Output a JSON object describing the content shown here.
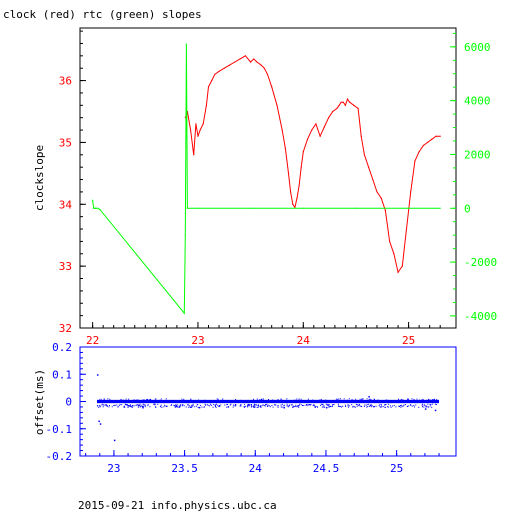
{
  "title": "clock (red) rtc (green) slopes",
  "footer": "2015-09-21 info.physics.ubc.ca",
  "colors": {
    "red": "#ff0000",
    "green": "#00ff00",
    "blue": "#0000ff",
    "frame": "#000000"
  },
  "chart_data": [
    {
      "type": "line",
      "ylabel": "clockslope",
      "y2label": "",
      "xlim": [
        21.88,
        25.45
      ],
      "ylim": [
        32.0,
        36.85
      ],
      "y2lim": [
        -4450,
        6700
      ],
      "grid": false,
      "xticks": [
        22,
        23,
        24,
        25
      ],
      "xtick_labels": [
        "22",
        "23",
        "24",
        "25"
      ],
      "yticks": [
        32,
        33,
        34,
        35,
        36
      ],
      "ytick_labels": [
        "32",
        "33",
        "34",
        "35",
        "36"
      ],
      "y2ticks": [
        -4000,
        -2000,
        0,
        2000,
        4000,
        6000
      ],
      "y2tick_labels": [
        "-4000",
        "-2000",
        "0",
        "2000",
        "4000",
        "6000"
      ],
      "series": [
        {
          "name": "clock",
          "color": "#ff0000",
          "axis": "left",
          "x": [
            22.88,
            22.9,
            22.93,
            22.96,
            22.98,
            23.0,
            23.02,
            23.05,
            23.08,
            23.1,
            23.13,
            23.16,
            23.2,
            23.25,
            23.3,
            23.35,
            23.4,
            23.45,
            23.5,
            23.53,
            23.56,
            23.6,
            23.63,
            23.66,
            23.7,
            23.75,
            23.8,
            23.83,
            23.86,
            23.88,
            23.9,
            23.92,
            23.94,
            23.96,
            23.98,
            24.0,
            24.04,
            24.08,
            24.12,
            24.16,
            24.2,
            24.24,
            24.28,
            24.32,
            24.34,
            24.36,
            24.38,
            24.4,
            24.42,
            24.44,
            24.48,
            24.52,
            24.55,
            24.58,
            24.62,
            24.66,
            24.7,
            24.74,
            24.78,
            24.82,
            24.86,
            24.9,
            24.94,
            24.98,
            25.02,
            25.06,
            25.1,
            25.14,
            25.18,
            25.22,
            25.26,
            25.3
          ],
          "y": [
            35.4,
            35.5,
            35.2,
            34.8,
            35.3,
            35.1,
            35.2,
            35.3,
            35.6,
            35.9,
            36.0,
            36.1,
            36.15,
            36.2,
            36.25,
            36.3,
            36.35,
            36.4,
            36.3,
            36.35,
            36.3,
            36.25,
            36.2,
            36.1,
            35.9,
            35.6,
            35.2,
            34.9,
            34.5,
            34.2,
            34.0,
            33.95,
            34.1,
            34.3,
            34.6,
            34.85,
            35.05,
            35.2,
            35.3,
            35.1,
            35.25,
            35.4,
            35.5,
            35.55,
            35.6,
            35.65,
            35.65,
            35.6,
            35.7,
            35.65,
            35.6,
            35.55,
            35.1,
            34.8,
            34.6,
            34.4,
            34.2,
            34.1,
            33.9,
            33.4,
            33.2,
            32.9,
            33.0,
            33.6,
            34.2,
            34.7,
            34.85,
            34.95,
            35.0,
            35.05,
            35.1,
            35.1
          ]
        },
        {
          "name": "rtc",
          "color": "#00ff00",
          "axis": "right",
          "x": [
            22.0,
            22.01,
            22.02,
            22.03,
            22.05,
            22.07,
            22.87,
            22.88,
            22.89,
            22.9,
            23.0,
            23.5,
            24.0,
            24.5,
            25.0,
            25.3
          ],
          "y": [
            300,
            0,
            0,
            0,
            0,
            -50,
            -3900,
            -1000,
            6100,
            0,
            0,
            0,
            0,
            0,
            0,
            0
          ]
        }
      ]
    },
    {
      "type": "scatter",
      "ylabel": "offset(ms)",
      "xlim": [
        22.76,
        25.42
      ],
      "ylim": [
        -0.2,
        0.2
      ],
      "grid": false,
      "xticks": [
        23,
        23.5,
        24,
        24.5,
        25
      ],
      "xtick_labels": [
        "23",
        "23.5",
        "24",
        "24.5",
        "25"
      ],
      "yticks": [
        -0.2,
        -0.1,
        0,
        0.1,
        0.2
      ],
      "ytick_labels": [
        "-0.2",
        "-0.1",
        "0",
        "0.1",
        "0.2"
      ],
      "series": [
        {
          "name": "offset",
          "color": "#0000ff",
          "x_range": [
            22.88,
            25.3
          ],
          "band": [
            -0.006,
            0.006
          ],
          "outliers": [
            [
              22.88,
              0.1
            ],
            [
              22.89,
              -0.07
            ],
            [
              22.9,
              -0.08
            ],
            [
              23.0,
              -0.14
            ],
            [
              23.2,
              -0.02
            ],
            [
              23.6,
              -0.02
            ],
            [
              24.2,
              -0.02
            ],
            [
              24.5,
              -0.02
            ],
            [
              24.8,
              0.02
            ],
            [
              25.2,
              -0.025
            ],
            [
              25.27,
              -0.03
            ]
          ]
        }
      ]
    }
  ]
}
